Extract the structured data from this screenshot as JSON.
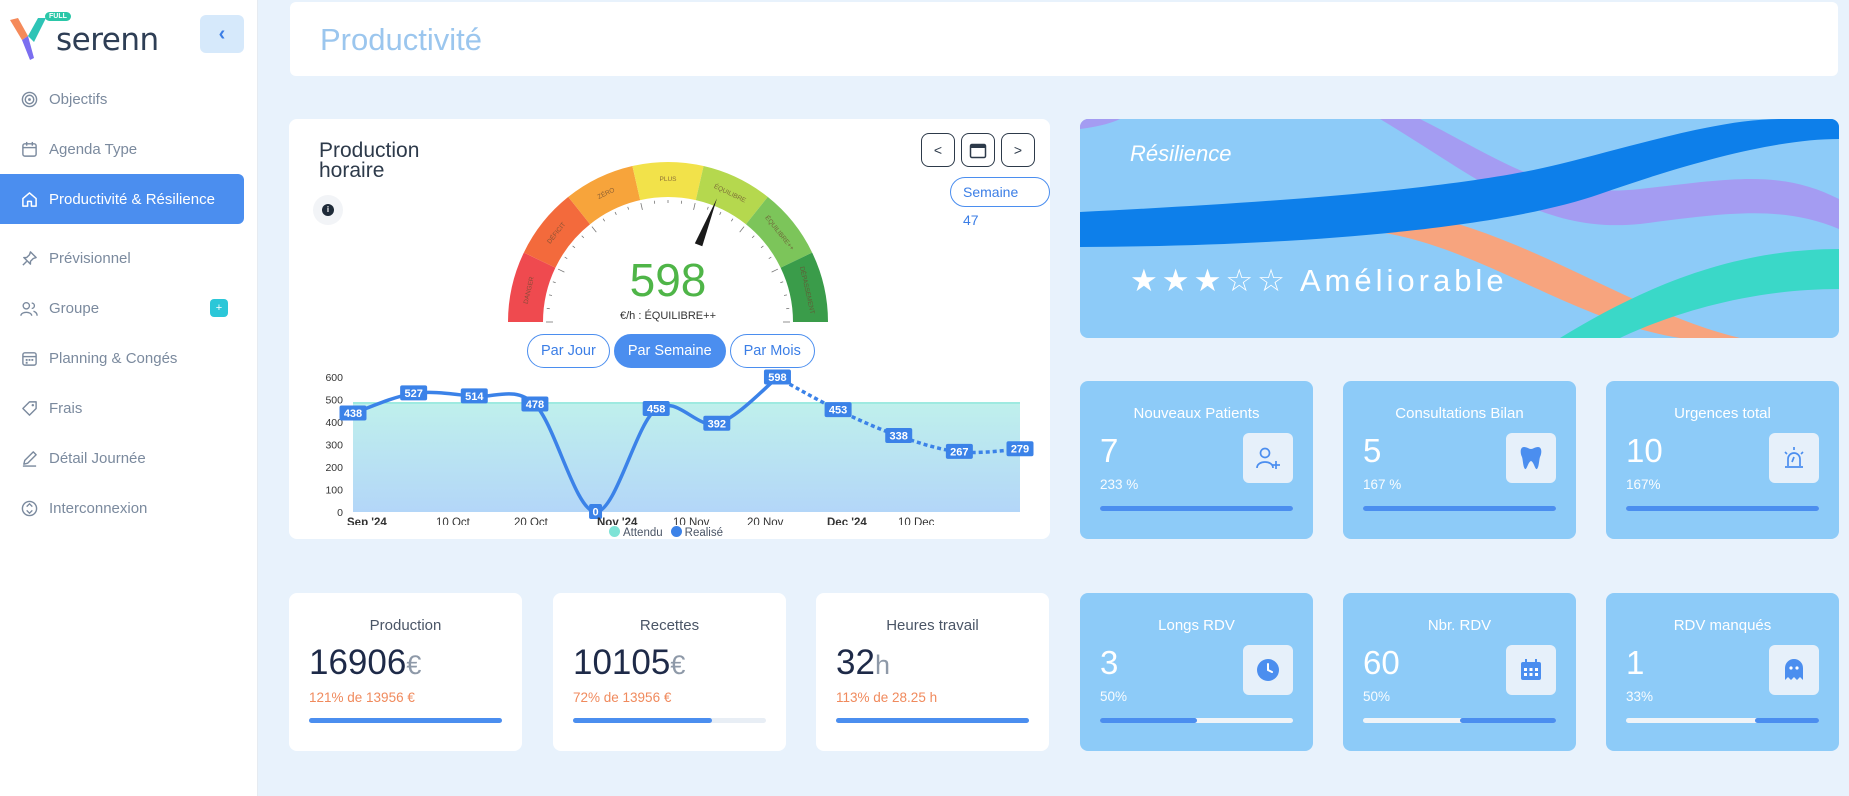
{
  "app": {
    "brand": "serenn",
    "badge": "FULL"
  },
  "sidebar": {
    "items": [
      {
        "label": "Objectifs",
        "icon": "target-icon"
      },
      {
        "label": "Agenda Type",
        "icon": "calendar-icon"
      },
      {
        "label": "Productivité & Résilience",
        "icon": "home-icon",
        "active": true
      },
      {
        "label": "Prévisionnel",
        "icon": "pushpin-icon"
      },
      {
        "label": "Groupe",
        "icon": "users-icon",
        "badge": "+"
      },
      {
        "label": "Planning & Congés",
        "icon": "calendar-grid-icon"
      },
      {
        "label": "Frais",
        "icon": "tag-icon"
      },
      {
        "label": "Détail Journée",
        "icon": "pencil-icon"
      },
      {
        "label": "Interconnexion",
        "icon": "sync-icon"
      }
    ]
  },
  "header": {
    "title": "Productivité"
  },
  "production": {
    "title": "Production horaire",
    "week_label": "Semaine 47",
    "nav": {
      "prev": "<",
      "next": ">"
    },
    "gauge": {
      "value": "598",
      "unit_text": "€/h : ÉQUILIBRE++",
      "zones": [
        "DANGER",
        "DÉFICIT",
        "ZÉRO",
        "PLUS",
        "ÉQUILIBRE",
        "ÉQUILIBRE++",
        "DÉPASSEMENT"
      ],
      "zone_colors": [
        "#ef4a4f",
        "#f36a3c",
        "#f7a43b",
        "#f2e24a",
        "#b5d84e",
        "#7cc55a",
        "#3a9c4a"
      ],
      "needle_fraction": 0.62
    },
    "periods": [
      "Par Jour",
      "Par Semaine",
      "Par Mois"
    ],
    "selected_period": "Par Semaine",
    "legend": {
      "expected": "Attendu",
      "actual": "Realisé"
    }
  },
  "chart_data": {
    "type": "line",
    "ylim": [
      0,
      600
    ],
    "yticks": [
      "600",
      "500",
      "400",
      "300",
      "200",
      "100",
      "0"
    ],
    "xticks": [
      "Sep '24",
      "10 Oct",
      "20 Oct",
      "Nov '24",
      "10 Nov",
      "20 Nov",
      "Dec '24",
      "10 Dec"
    ],
    "bold_xticks": [
      "Sep '24",
      "Nov '24",
      "Dec '24"
    ],
    "series": [
      {
        "name": "Realisé",
        "values": [
          438,
          527,
          514,
          478,
          0,
          458,
          392,
          598,
          453,
          338,
          267,
          279
        ]
      },
      {
        "name": "Attendu",
        "values": [
          485,
          485,
          485,
          485,
          485,
          485,
          485,
          485,
          485,
          485,
          485,
          485
        ]
      }
    ],
    "colors": {
      "actual": "#3b82e8",
      "expected": "#7ee3d6"
    }
  },
  "resilience": {
    "title": "Résilience",
    "stars": "★★★☆☆",
    "label": "Améliorable"
  },
  "stats": [
    {
      "title": "Nouveaux Patients",
      "value": "7",
      "pct": "233 %",
      "icon": "add-user-icon",
      "fill": 1.0
    },
    {
      "title": "Consultations Bilan",
      "value": "5",
      "pct": "167 %",
      "icon": "tooth-icon",
      "fill": 1.0
    },
    {
      "title": "Urgences total",
      "value": "10",
      "pct": "167%",
      "icon": "alarm-icon",
      "fill": 1.0
    },
    {
      "title": "Longs RDV",
      "value": "3",
      "pct": "50%",
      "icon": "clock-icon",
      "fill": 0.5
    },
    {
      "title": "Nbr. RDV",
      "value": "60",
      "pct": "50%",
      "icon": "calendar-icon",
      "fill": 0.5
    },
    {
      "title": "RDV manqués",
      "value": "1",
      "pct": "33%",
      "icon": "ghost-icon",
      "fill": 0.33
    }
  ],
  "kpis": [
    {
      "title": "Production",
      "value": "16906",
      "unit": "€",
      "sub": "121% de 13956 €",
      "fill": 1.0
    },
    {
      "title": "Recettes",
      "value": "10105",
      "unit": "€",
      "sub": "72% de 13956 €",
      "fill": 0.72
    },
    {
      "title": "Heures travail",
      "value": "32",
      "unit": "h",
      "sub": "113% de 28.25 h",
      "fill": 1.0
    }
  ]
}
